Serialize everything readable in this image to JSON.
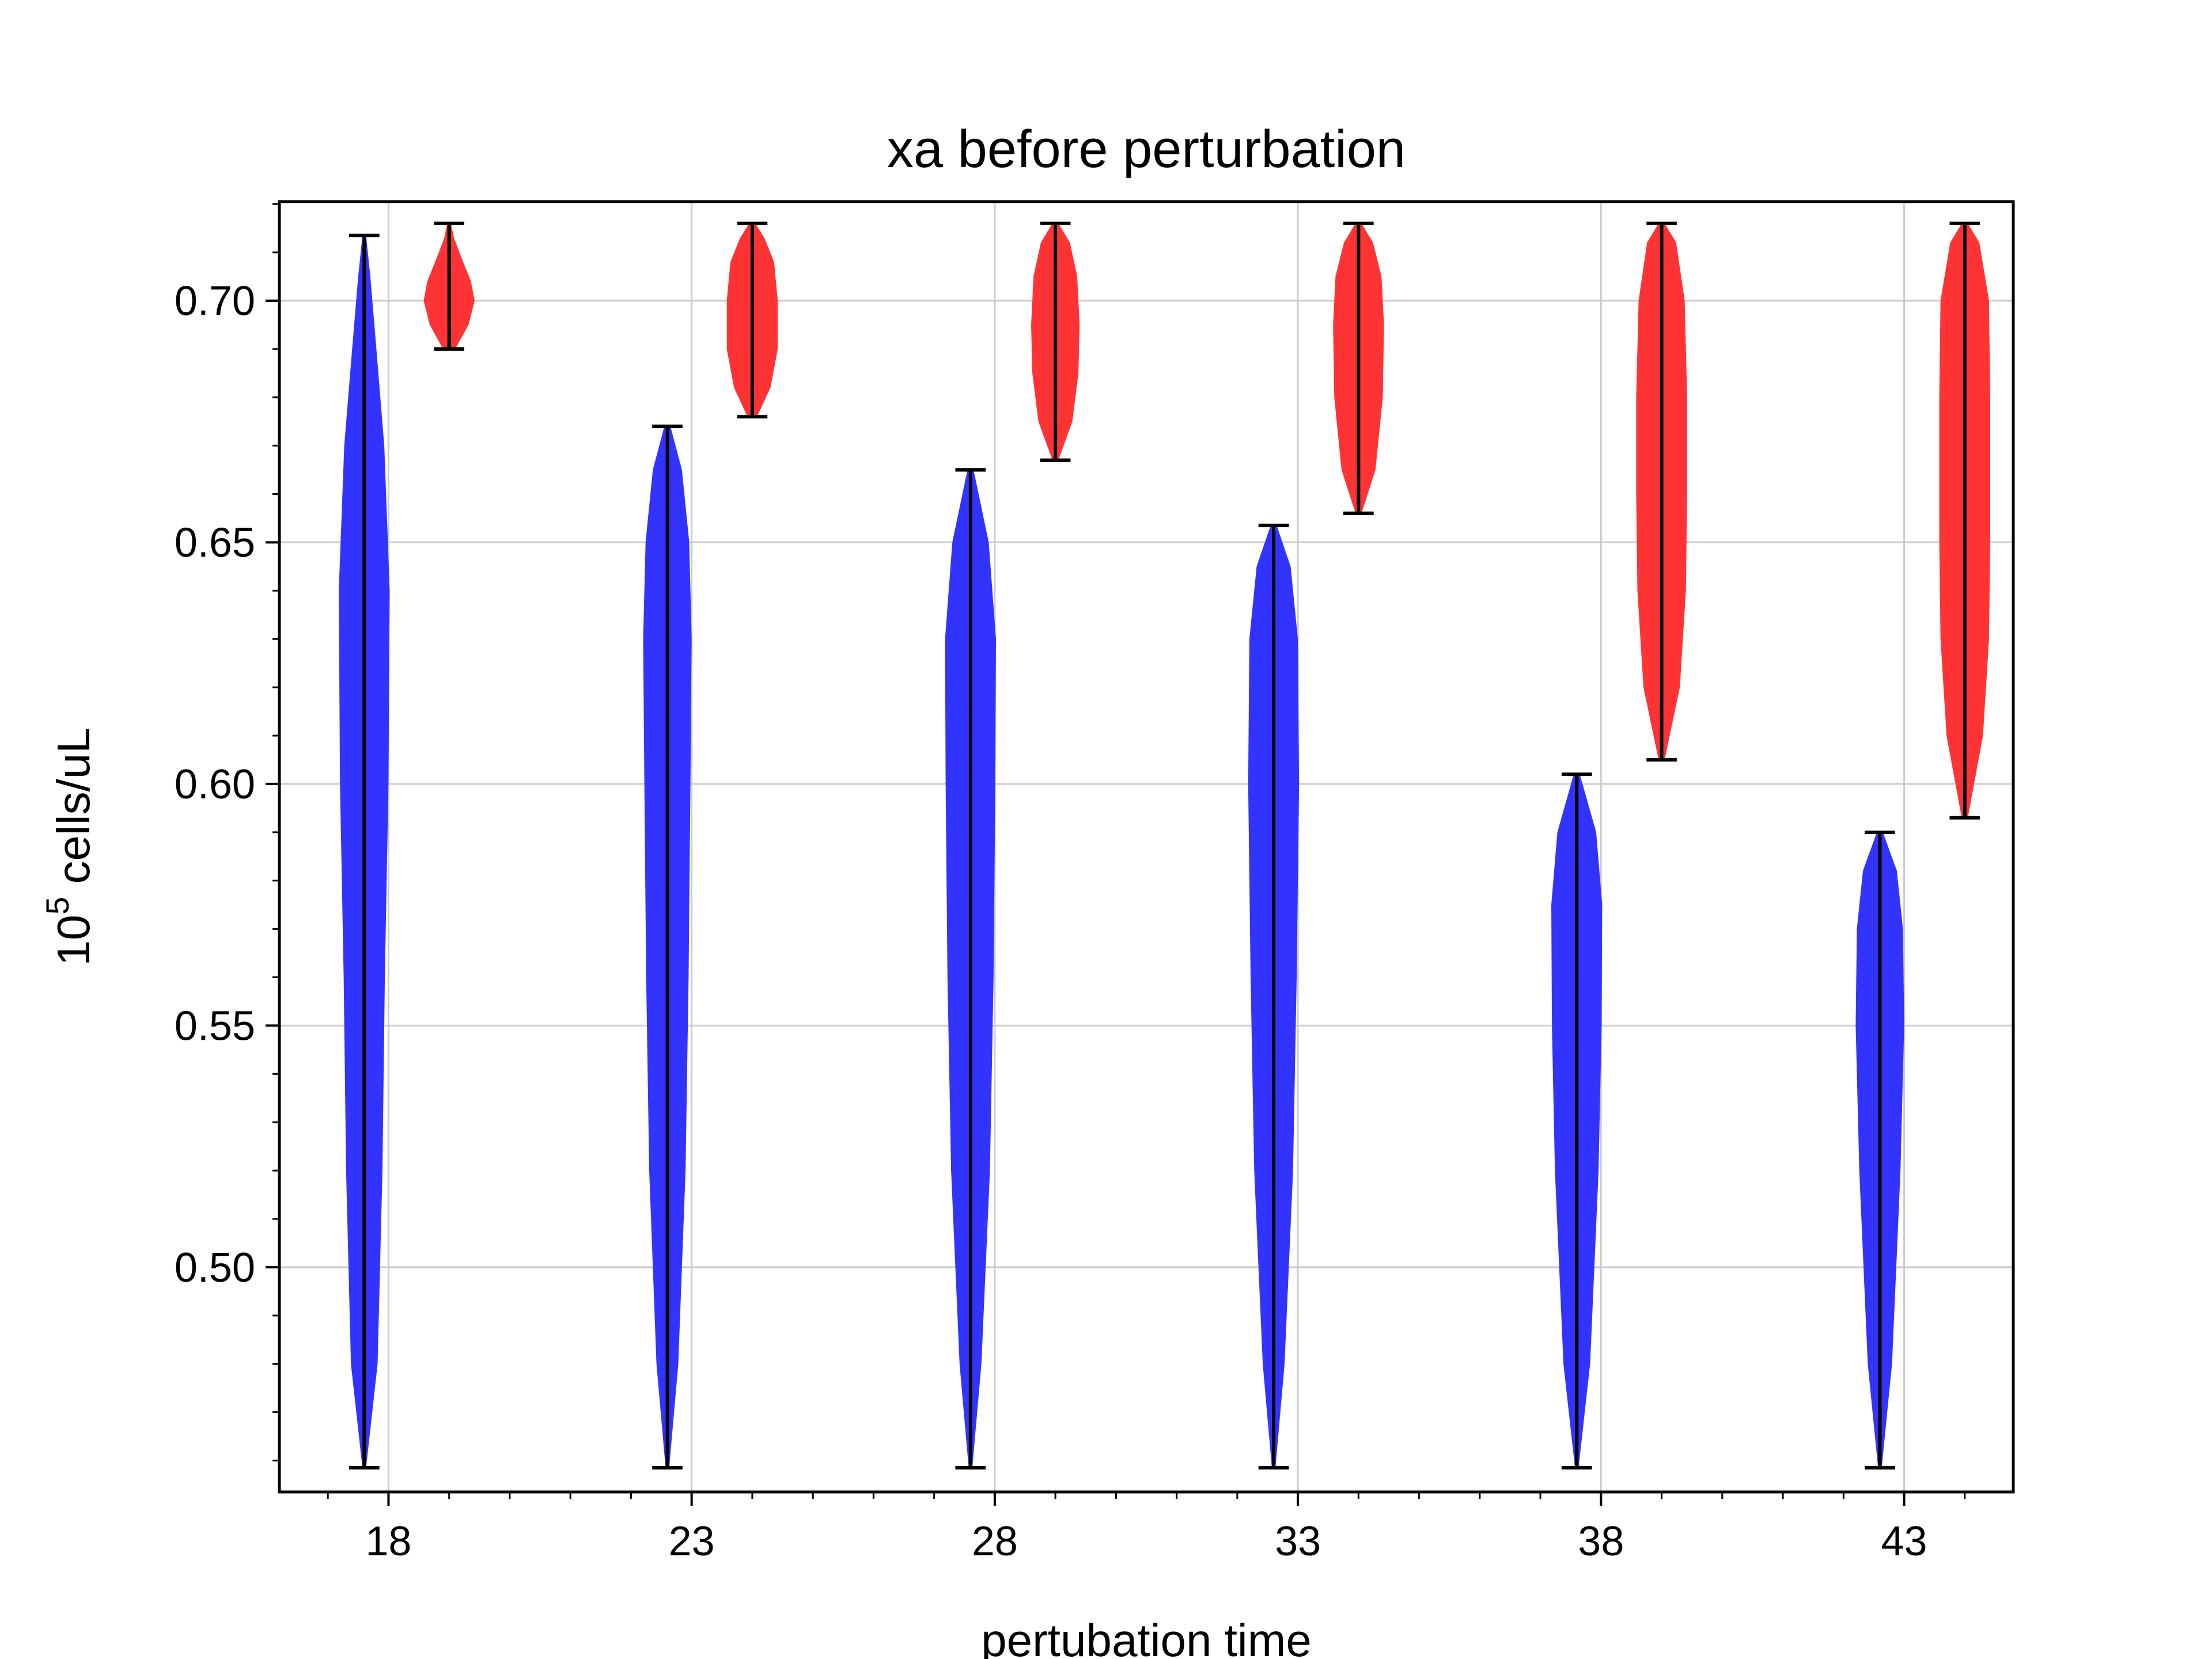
{
  "chart_data": {
    "type": "violin",
    "title": "xa before perturbation",
    "xlabel": "pertubation time",
    "ylabel_base": "10",
    "ylabel_exponent": "5",
    "ylabel_rest": " cells/uL",
    "xlim": [
      16.2,
      44.8
    ],
    "ylim": [
      0.4535,
      0.7205
    ],
    "xticks": [
      18,
      23,
      28,
      33,
      38,
      43
    ],
    "xtick_labels": [
      "18",
      "23",
      "28",
      "33",
      "38",
      "43"
    ],
    "yticks": [
      0.5,
      0.55,
      0.6,
      0.65,
      0.7
    ],
    "ytick_labels": [
      "0.50",
      "0.55",
      "0.60",
      "0.65",
      "0.70"
    ],
    "grid": true,
    "colors": {
      "blue": "#3333ff",
      "red": "#ff3333",
      "bar": "#000000"
    },
    "series": [
      {
        "color": "#3333ff",
        "violins": [
          {
            "x": 17.6,
            "min": 0.4585,
            "max": 0.7135,
            "max_halfwidth": 0.42,
            "profile": [
              [
                0.4585,
                0.03
              ],
              [
                0.48,
                0.22
              ],
              [
                0.52,
                0.3
              ],
              [
                0.56,
                0.34
              ],
              [
                0.6,
                0.4
              ],
              [
                0.64,
                0.42
              ],
              [
                0.67,
                0.33
              ],
              [
                0.69,
                0.2
              ],
              [
                0.705,
                0.1
              ],
              [
                0.7135,
                0.03
              ]
            ]
          },
          {
            "x": 22.6,
            "min": 0.4585,
            "max": 0.674,
            "max_halfwidth": 0.4,
            "profile": [
              [
                0.4585,
                0.03
              ],
              [
                0.48,
                0.18
              ],
              [
                0.52,
                0.3
              ],
              [
                0.56,
                0.35
              ],
              [
                0.6,
                0.38
              ],
              [
                0.63,
                0.4
              ],
              [
                0.65,
                0.36
              ],
              [
                0.665,
                0.24
              ],
              [
                0.674,
                0.05
              ]
            ]
          },
          {
            "x": 27.6,
            "min": 0.4585,
            "max": 0.665,
            "max_halfwidth": 0.42,
            "profile": [
              [
                0.4585,
                0.03
              ],
              [
                0.48,
                0.18
              ],
              [
                0.52,
                0.32
              ],
              [
                0.56,
                0.38
              ],
              [
                0.6,
                0.41
              ],
              [
                0.63,
                0.42
              ],
              [
                0.65,
                0.3
              ],
              [
                0.665,
                0.05
              ]
            ]
          },
          {
            "x": 32.6,
            "min": 0.4585,
            "max": 0.6535,
            "max_halfwidth": 0.42,
            "profile": [
              [
                0.4585,
                0.03
              ],
              [
                0.48,
                0.18
              ],
              [
                0.52,
                0.32
              ],
              [
                0.56,
                0.38
              ],
              [
                0.6,
                0.42
              ],
              [
                0.63,
                0.4
              ],
              [
                0.645,
                0.28
              ],
              [
                0.6535,
                0.05
              ]
            ]
          },
          {
            "x": 37.6,
            "min": 0.4585,
            "max": 0.602,
            "max_halfwidth": 0.42,
            "profile": [
              [
                0.4585,
                0.03
              ],
              [
                0.48,
                0.22
              ],
              [
                0.52,
                0.36
              ],
              [
                0.55,
                0.41
              ],
              [
                0.575,
                0.42
              ],
              [
                0.59,
                0.32
              ],
              [
                0.602,
                0.05
              ]
            ]
          },
          {
            "x": 42.6,
            "min": 0.4585,
            "max": 0.59,
            "max_halfwidth": 0.4,
            "profile": [
              [
                0.4585,
                0.03
              ],
              [
                0.48,
                0.2
              ],
              [
                0.52,
                0.34
              ],
              [
                0.55,
                0.4
              ],
              [
                0.57,
                0.38
              ],
              [
                0.582,
                0.28
              ],
              [
                0.59,
                0.05
              ]
            ]
          }
        ]
      },
      {
        "color": "#ff3333",
        "violins": [
          {
            "x": 19.0,
            "min": 0.69,
            "max": 0.716,
            "max_halfwidth": 0.42,
            "profile": [
              [
                0.69,
                0.1
              ],
              [
                0.695,
                0.32
              ],
              [
                0.7,
                0.42
              ],
              [
                0.704,
                0.36
              ],
              [
                0.709,
                0.2
              ],
              [
                0.713,
                0.08
              ],
              [
                0.716,
                0.03
              ]
            ]
          },
          {
            "x": 24.0,
            "min": 0.676,
            "max": 0.716,
            "max_halfwidth": 0.42,
            "profile": [
              [
                0.676,
                0.08
              ],
              [
                0.682,
                0.3
              ],
              [
                0.69,
                0.42
              ],
              [
                0.7,
                0.42
              ],
              [
                0.708,
                0.36
              ],
              [
                0.713,
                0.2
              ],
              [
                0.716,
                0.05
              ]
            ]
          },
          {
            "x": 29.0,
            "min": 0.667,
            "max": 0.716,
            "max_halfwidth": 0.4,
            "profile": [
              [
                0.667,
                0.05
              ],
              [
                0.675,
                0.28
              ],
              [
                0.685,
                0.38
              ],
              [
                0.695,
                0.4
              ],
              [
                0.705,
                0.36
              ],
              [
                0.712,
                0.24
              ],
              [
                0.716,
                0.05
              ]
            ]
          },
          {
            "x": 34.0,
            "min": 0.656,
            "max": 0.716,
            "max_halfwidth": 0.42,
            "profile": [
              [
                0.656,
                0.05
              ],
              [
                0.665,
                0.28
              ],
              [
                0.68,
                0.4
              ],
              [
                0.695,
                0.42
              ],
              [
                0.705,
                0.38
              ],
              [
                0.712,
                0.24
              ],
              [
                0.716,
                0.05
              ]
            ]
          },
          {
            "x": 39.0,
            "min": 0.605,
            "max": 0.716,
            "max_halfwidth": 0.42,
            "profile": [
              [
                0.605,
                0.05
              ],
              [
                0.62,
                0.3
              ],
              [
                0.64,
                0.4
              ],
              [
                0.66,
                0.42
              ],
              [
                0.68,
                0.42
              ],
              [
                0.7,
                0.38
              ],
              [
                0.712,
                0.24
              ],
              [
                0.716,
                0.05
              ]
            ]
          },
          {
            "x": 44.0,
            "min": 0.593,
            "max": 0.716,
            "max_halfwidth": 0.42,
            "profile": [
              [
                0.593,
                0.05
              ],
              [
                0.61,
                0.3
              ],
              [
                0.63,
                0.4
              ],
              [
                0.65,
                0.42
              ],
              [
                0.68,
                0.42
              ],
              [
                0.7,
                0.4
              ],
              [
                0.712,
                0.24
              ],
              [
                0.716,
                0.05
              ]
            ]
          }
        ]
      }
    ]
  }
}
